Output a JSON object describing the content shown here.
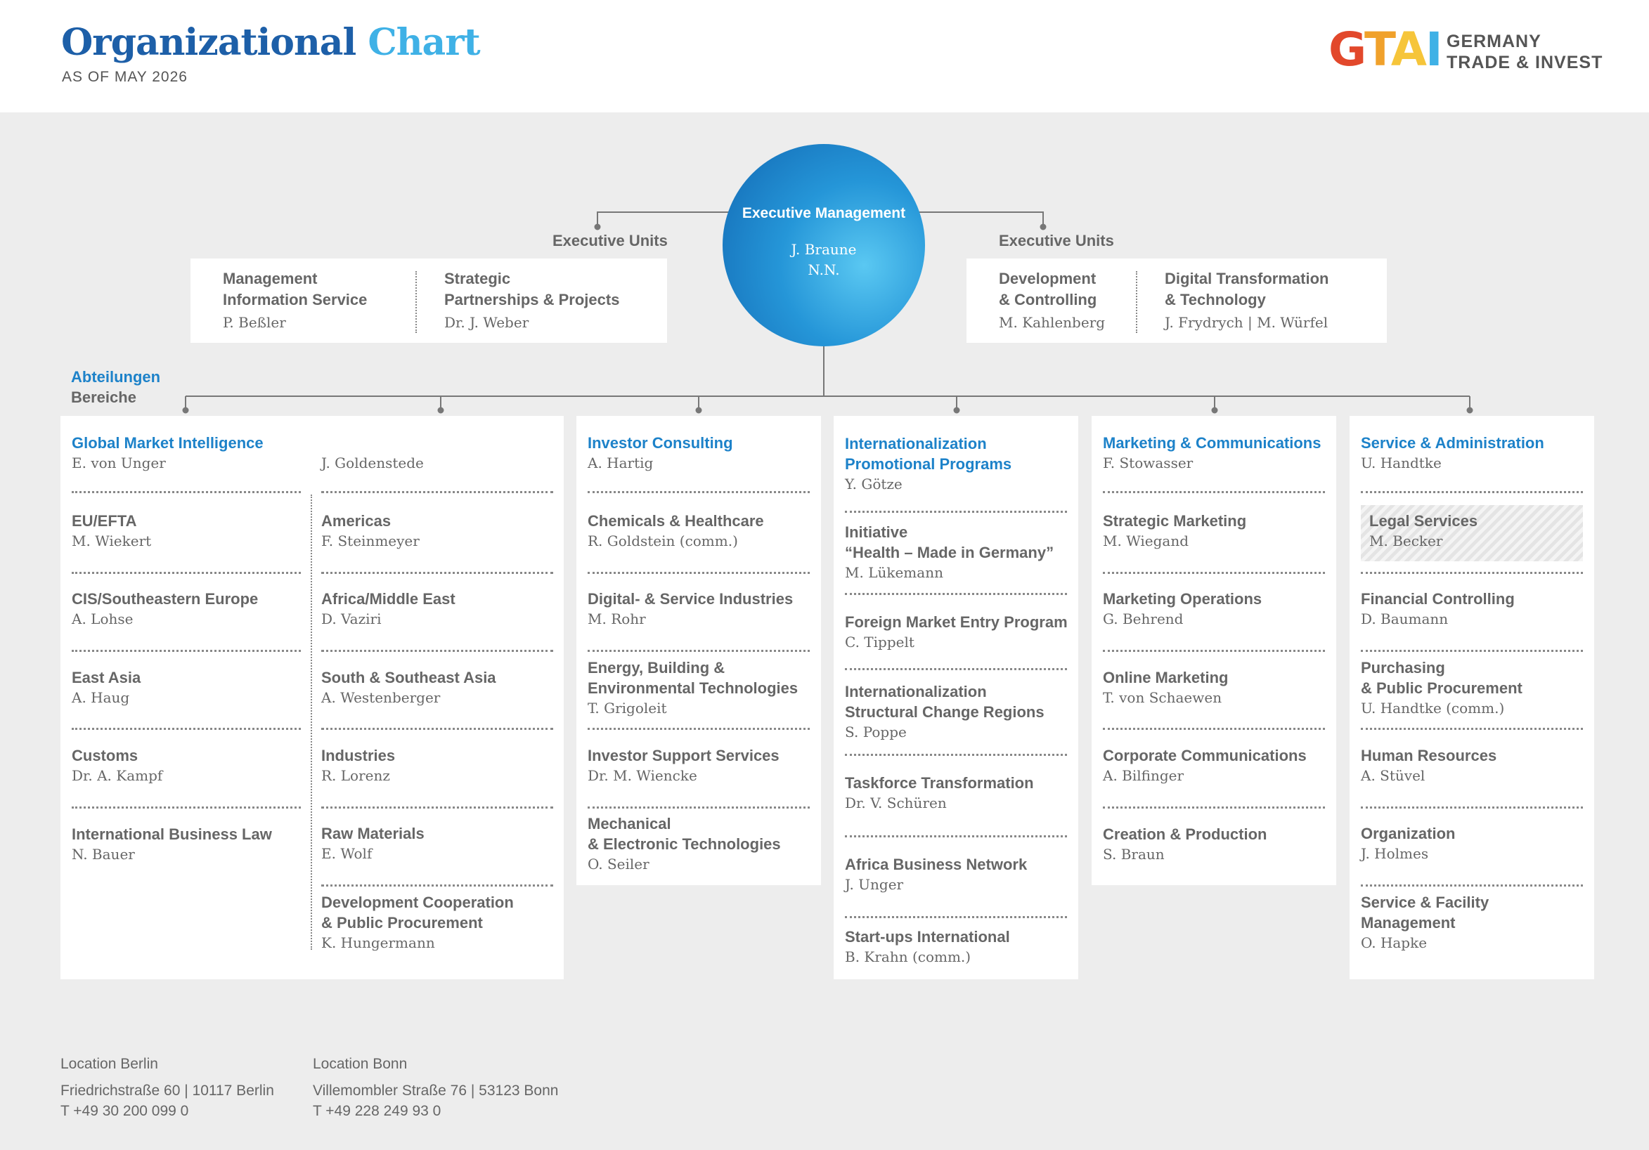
{
  "header": {
    "title_part1": "Organizational",
    "title_part2": "Chart",
    "as_of": "AS OF MAY 2026",
    "logo": {
      "letters": [
        "G",
        "T",
        "A",
        "I"
      ],
      "colors": [
        "#e2482b",
        "#f0a12b",
        "#f6c53a",
        "#3fb1e6"
      ],
      "line1": "GERMANY",
      "line2": "TRADE & INVEST"
    }
  },
  "executive": {
    "title": "Executive Management",
    "names": [
      "J. Braune",
      "N.N."
    ]
  },
  "exec_units_left": {
    "label": "Executive Units",
    "items": [
      {
        "title": [
          "Management",
          "Information Service"
        ],
        "person": "P. Beßler"
      },
      {
        "title": [
          "Strategic",
          "Partnerships & Projects"
        ],
        "person": "Dr. J. Weber"
      }
    ]
  },
  "exec_units_right": {
    "label": "Executive Units",
    "items": [
      {
        "title": [
          "Development",
          "& Controlling"
        ],
        "person": "M. Kahlenberg"
      },
      {
        "title": [
          "Digital Transformation",
          "& Technology"
        ],
        "person": "J. Frydrych | M. Würfel"
      }
    ]
  },
  "departments_label": {
    "line1": "Abteilungen",
    "line2": "Bereiche"
  },
  "departments": {
    "gmi": {
      "head": {
        "title": [
          "Global Market Intelligence"
        ],
        "person": "E. von Unger",
        "person2": "J. Goldenstede"
      },
      "left": [
        {
          "title": [
            "EU/EFTA"
          ],
          "person": "M. Wiekert"
        },
        {
          "title": [
            "CIS/Southeastern Europe"
          ],
          "person": "A. Lohse"
        },
        {
          "title": [
            "East Asia"
          ],
          "person": "A. Haug"
        },
        {
          "title": [
            "Customs"
          ],
          "person": "Dr. A. Kampf"
        },
        {
          "title": [
            "International Business Law"
          ],
          "person": "N. Bauer"
        }
      ],
      "right": [
        {
          "title": [
            "Americas"
          ],
          "person": "F. Steinmeyer"
        },
        {
          "title": [
            "Africa/Middle East"
          ],
          "person": "D. Vaziri"
        },
        {
          "title": [
            "South & Southeast Asia"
          ],
          "person": "A. Westenberger"
        },
        {
          "title": [
            "Industries"
          ],
          "person": "R. Lorenz"
        },
        {
          "title": [
            "Raw Materials"
          ],
          "person": "E. Wolf"
        },
        {
          "title": [
            "Development Cooperation",
            "& Public Procurement"
          ],
          "person": "K. Hungermann"
        }
      ]
    },
    "ic": {
      "head": {
        "title": [
          "Investor Consulting"
        ],
        "person": "A. Hartig"
      },
      "items": [
        {
          "title": [
            "Chemicals & Healthcare"
          ],
          "person": "R. Goldstein (comm.)"
        },
        {
          "title": [
            "Digital- & Service Industries"
          ],
          "person": "M. Rohr"
        },
        {
          "title": [
            "Energy, Building &",
            "Environmental Technologies"
          ],
          "person": "T. Grigoleit"
        },
        {
          "title": [
            "Investor Support Services"
          ],
          "person": "Dr. M. Wiencke"
        },
        {
          "title": [
            "Mechanical",
            "& Electronic Technologies"
          ],
          "person": "O. Seiler"
        }
      ]
    },
    "ipp": {
      "head": {
        "title": [
          "Internationalization",
          "Promotional Programs"
        ],
        "person": "Y. Götze"
      },
      "items": [
        {
          "title": [
            "Initiative",
            "“Health – Made in Germany”"
          ],
          "person": "M. Lükemann"
        },
        {
          "title": [
            "Foreign Market Entry Program"
          ],
          "person": "C. Tippelt"
        },
        {
          "title": [
            "Internationalization",
            "Structural Change Regions"
          ],
          "person": "S. Poppe"
        },
        {
          "title": [
            "Taskforce Transformation"
          ],
          "person": "Dr. V. Schüren"
        },
        {
          "title": [
            "Africa Business Network"
          ],
          "person": "J. Unger"
        },
        {
          "title": [
            "Start-ups International"
          ],
          "person": "B. Krahn (comm.)"
        }
      ]
    },
    "mc": {
      "head": {
        "title": [
          "Marketing & Communications"
        ],
        "person": "F. Stowasser"
      },
      "items": [
        {
          "title": [
            "Strategic Marketing"
          ],
          "person": "M. Wiegand"
        },
        {
          "title": [
            "Marketing Operations"
          ],
          "person": "G. Behrend"
        },
        {
          "title": [
            "Online Marketing"
          ],
          "person": "T. von Schaewen"
        },
        {
          "title": [
            "Corporate Communications"
          ],
          "person": "A. Bilfinger"
        },
        {
          "title": [
            "Creation & Production"
          ],
          "person": "S. Braun"
        }
      ]
    },
    "sa": {
      "head": {
        "title": [
          "Service & Administration"
        ],
        "person": "U. Handtke"
      },
      "items": [
        {
          "title": [
            "Legal Services"
          ],
          "person": "M. Becker"
        },
        {
          "title": [
            "Financial Controlling"
          ],
          "person": "D. Baumann"
        },
        {
          "title": [
            "Purchasing",
            "& Public Procurement"
          ],
          "person": "U. Handtke (comm.)"
        },
        {
          "title": [
            "Human Resources"
          ],
          "person": "A. Stüvel"
        },
        {
          "title": [
            "Organization"
          ],
          "person": "J. Holmes"
        },
        {
          "title": [
            "Service & Facility",
            "Management"
          ],
          "person": "O. Hapke"
        }
      ]
    }
  },
  "footer": {
    "berlin": {
      "label": "Location Berlin",
      "address": "Friedrichstraße 60 | 10117 Berlin",
      "phone": "T +49 30 200 099 0"
    },
    "bonn": {
      "label": "Location Bonn",
      "address": "Villemombler Straße 76 | 53123 Bonn",
      "phone": "T +49 228 249 93 0"
    }
  }
}
